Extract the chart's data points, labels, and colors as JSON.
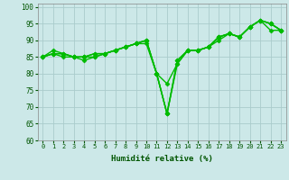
{
  "xlabel": "Humidité relative (%)",
  "xlim": [
    -0.5,
    23.5
  ],
  "ylim": [
    60,
    101
  ],
  "yticks": [
    60,
    65,
    70,
    75,
    80,
    85,
    90,
    95,
    100
  ],
  "xticks": [
    0,
    1,
    2,
    3,
    4,
    5,
    6,
    7,
    8,
    9,
    10,
    11,
    12,
    13,
    14,
    15,
    16,
    17,
    18,
    19,
    20,
    21,
    22,
    23
  ],
  "bg_color": "#cce8e8",
  "grid_color": "#aacccc",
  "line_color": "#00bb00",
  "markersize": 2.5,
  "linewidth": 1.0,
  "curves": [
    [
      85,
      87,
      86,
      85,
      84,
      85,
      86,
      87,
      88,
      89,
      90,
      80,
      77,
      83,
      87,
      87,
      88,
      91,
      92,
      91,
      94,
      96,
      95,
      93
    ],
    [
      85,
      86,
      86,
      85,
      85,
      85,
      86,
      87,
      88,
      89,
      89,
      80,
      68,
      84,
      87,
      87,
      88,
      90,
      92,
      91,
      94,
      96,
      93,
      93
    ],
    [
      85,
      86,
      86,
      85,
      85,
      86,
      86,
      87,
      88,
      89,
      90,
      80,
      68,
      84,
      87,
      87,
      88,
      91,
      92,
      91,
      94,
      96,
      95,
      93
    ],
    [
      85,
      86,
      85,
      85,
      85,
      86,
      86,
      87,
      88,
      89,
      90,
      80,
      68,
      83,
      87,
      87,
      88,
      91,
      92,
      91,
      94,
      96,
      95,
      93
    ]
  ]
}
